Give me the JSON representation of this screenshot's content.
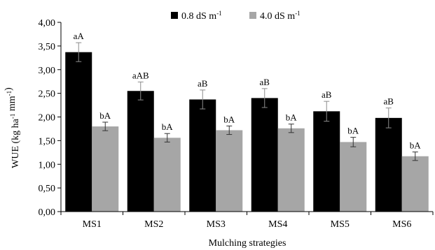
{
  "chart_data": {
    "type": "bar",
    "categories": [
      "MS1",
      "MS2",
      "MS3",
      "MS4",
      "MS5",
      "MS6"
    ],
    "series": [
      {
        "name": "0.8 dS m⁻¹",
        "color": "#000000",
        "values": [
          3.37,
          2.55,
          2.37,
          2.4,
          2.12,
          1.98
        ],
        "errors": [
          0.2,
          0.19,
          0.2,
          0.2,
          0.21,
          0.21
        ],
        "labels": [
          "aA",
          "aAB",
          "aB",
          "aB",
          "aB",
          "aB"
        ]
      },
      {
        "name": "4.0 dS m⁻¹",
        "color": "#a6a6a6",
        "values": [
          1.8,
          1.56,
          1.72,
          1.76,
          1.47,
          1.17
        ],
        "errors": [
          0.09,
          0.09,
          0.09,
          0.09,
          0.1,
          0.09
        ],
        "labels": [
          "bA",
          "bA",
          "bA",
          "bA",
          "bA",
          "bA"
        ]
      }
    ],
    "xlabel": "Mulching strategies",
    "ylabel": "WUE (kg ha⁻¹ mm⁻¹)",
    "ylim": [
      0,
      4
    ],
    "yticks": [
      "0,00",
      "0,50",
      "1,00",
      "1,50",
      "2,00",
      "2,50",
      "3,00",
      "3,50",
      "4,00"
    ],
    "grid": false,
    "legend_position": "top-center"
  }
}
